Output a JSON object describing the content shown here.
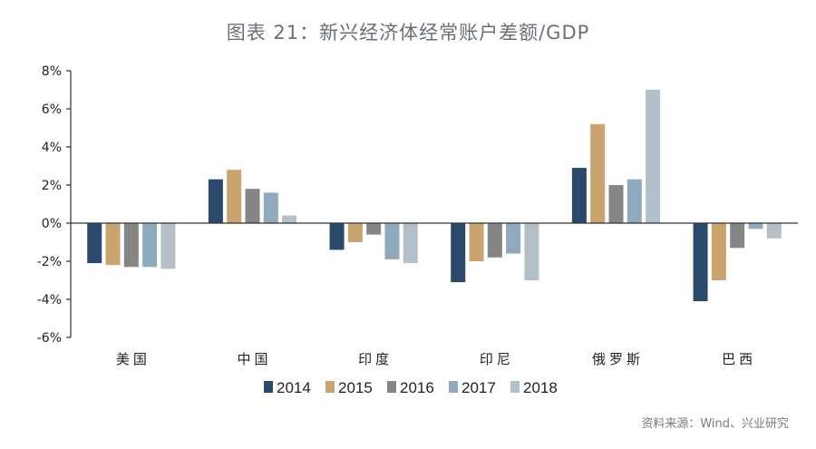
{
  "title": "图表 21：新兴经济体经常账户差额/GDP",
  "source": "资料来源：Wind、兴业研究",
  "chart_data": {
    "type": "bar",
    "title": "图表 21：新兴经济体经常账户差额/GDP",
    "categories": [
      "美国",
      "中国",
      "印度",
      "印尼",
      "俄罗斯",
      "巴西"
    ],
    "series": [
      {
        "name": "2014",
        "color": "#2b4a6b",
        "values": [
          -2.1,
          2.3,
          -1.4,
          -3.1,
          2.9,
          -4.1
        ]
      },
      {
        "name": "2015",
        "color": "#c9a46e",
        "values": [
          -2.2,
          2.8,
          -1.0,
          -2.0,
          5.2,
          -3.0
        ]
      },
      {
        "name": "2016",
        "color": "#858585",
        "values": [
          -2.3,
          1.8,
          -0.6,
          -1.8,
          2.0,
          -1.3
        ]
      },
      {
        "name": "2017",
        "color": "#8fa9bd",
        "values": [
          -2.3,
          1.6,
          -1.9,
          -1.6,
          2.3,
          -0.3
        ]
      },
      {
        "name": "2018",
        "color": "#b3bfc9",
        "values": [
          -2.4,
          0.4,
          -2.1,
          -3.0,
          7.0,
          -0.8
        ]
      }
    ],
    "yticks": [
      "-6%",
      "-4%",
      "-2%",
      "0%",
      "2%",
      "4%",
      "6%",
      "8%"
    ],
    "ylim": [
      -6,
      8
    ],
    "xlabel": "",
    "ylabel": "",
    "legend": "bottom"
  }
}
